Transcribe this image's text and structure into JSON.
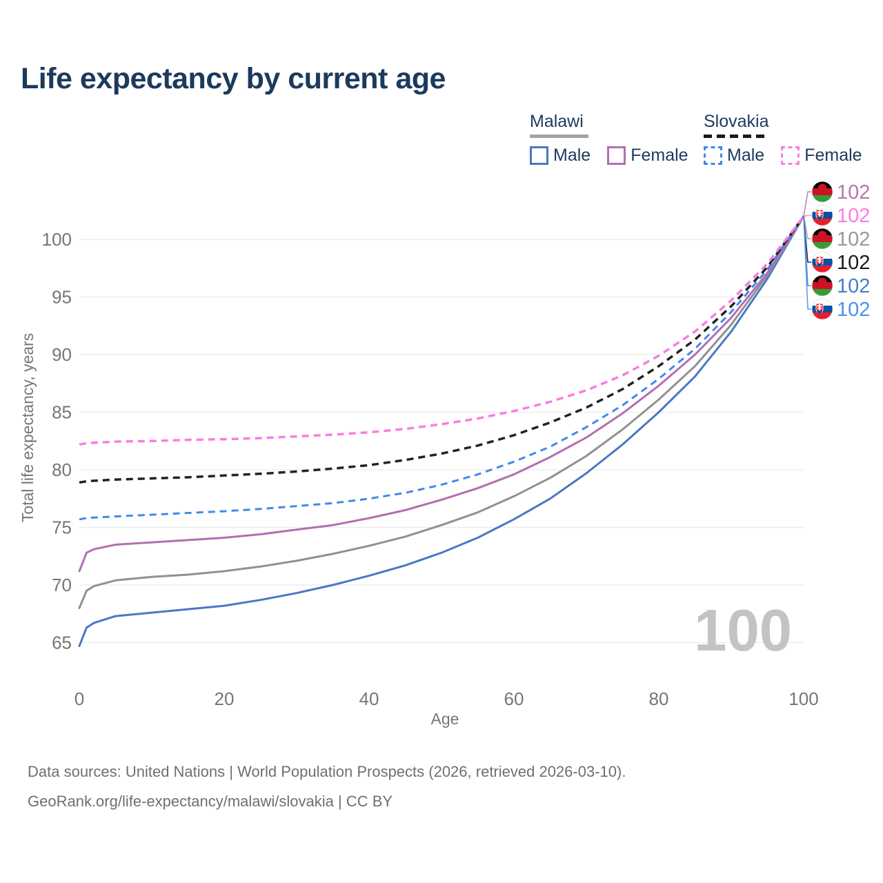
{
  "header": {
    "title": "Life expectancy by current age"
  },
  "legend": {
    "groups": [
      {
        "country": "Malawi",
        "line_style": "solid",
        "underline_color": "#a3a3a3",
        "items": [
          {
            "label": "Male",
            "color": "#4a77c4"
          },
          {
            "label": "Female",
            "color": "#b16fb1"
          }
        ]
      },
      {
        "country": "Slovakia",
        "line_style": "dashed",
        "underline_color": "#1a1a1a",
        "items": [
          {
            "label": "Male",
            "color": "#4189ea"
          },
          {
            "label": "Female",
            "color": "#fb7ce1"
          }
        ]
      }
    ]
  },
  "chart_data": {
    "type": "line",
    "title": "Life expectancy by current age",
    "xlabel": "Age",
    "ylabel": "Total life expectancy, years",
    "xlim": [
      0,
      100
    ],
    "ylim": [
      63,
      103.5
    ],
    "x_ticks": [
      0,
      20,
      40,
      60,
      80,
      100
    ],
    "y_ticks": [
      65,
      70,
      75,
      80,
      85,
      90,
      95,
      100
    ],
    "grid": "horizontal",
    "legend_position": "top-right",
    "watermark": "100",
    "x": [
      0,
      1,
      2,
      5,
      10,
      15,
      20,
      25,
      30,
      35,
      40,
      45,
      50,
      55,
      60,
      65,
      70,
      75,
      80,
      85,
      90,
      95,
      100
    ],
    "series": [
      {
        "name": "Malawi Male",
        "country": "Malawi",
        "sex": "Male",
        "line_style": "solid",
        "color": "#4a77c4",
        "width": 3,
        "values": [
          64.7,
          66.3,
          66.7,
          67.3,
          67.6,
          67.9,
          68.2,
          68.7,
          69.3,
          70.0,
          70.8,
          71.7,
          72.8,
          74.1,
          75.7,
          77.5,
          79.7,
          82.2,
          85.0,
          88.1,
          92.0,
          96.6,
          102
        ],
        "end_value": "102",
        "end_label_row": 4,
        "end_label_color": "#4a7cc7",
        "flag": "malawi-flag-icon"
      },
      {
        "name": "Malawi Total",
        "country": "Malawi",
        "sex": "Total",
        "line_style": "solid",
        "color": "#909090",
        "width": 3,
        "values": [
          68.0,
          69.5,
          69.9,
          70.4,
          70.7,
          70.9,
          71.2,
          71.6,
          72.1,
          72.7,
          73.4,
          74.2,
          75.2,
          76.3,
          77.7,
          79.3,
          81.2,
          83.5,
          86.1,
          89.0,
          92.6,
          96.9,
          102
        ],
        "end_value": "102",
        "end_label_row": 2,
        "end_label_color": "#999999",
        "flag": "malawi-flag-icon"
      },
      {
        "name": "Malawi Female",
        "country": "Malawi",
        "sex": "Female",
        "line_style": "solid",
        "color": "#b16fb1",
        "width": 3,
        "values": [
          71.2,
          72.8,
          73.1,
          73.5,
          73.7,
          73.9,
          74.1,
          74.4,
          74.8,
          75.2,
          75.8,
          76.5,
          77.4,
          78.4,
          79.6,
          81.1,
          82.8,
          84.9,
          87.3,
          90.0,
          93.2,
          97.1,
          102
        ],
        "end_value": "102",
        "end_label_row": 0,
        "end_label_color": "#b279ae",
        "flag": "malawi-flag-icon"
      },
      {
        "name": "Slovakia Male",
        "country": "Slovakia",
        "sex": "Male",
        "line_style": "dashed",
        "color": "#4189ea",
        "width": 3,
        "values": [
          75.7,
          75.8,
          75.85,
          75.95,
          76.1,
          76.25,
          76.4,
          76.6,
          76.85,
          77.1,
          77.5,
          78.0,
          78.7,
          79.6,
          80.7,
          82.0,
          83.7,
          85.6,
          87.9,
          90.5,
          93.7,
          97.4,
          102
        ],
        "end_value": "102",
        "end_label_row": 5,
        "end_label_color": "#4a90f5",
        "flag": "slovakia-flag-icon"
      },
      {
        "name": "Slovakia Total",
        "country": "Slovakia",
        "sex": "Total",
        "line_style": "dashed",
        "color": "#222222",
        "width": 3.5,
        "values": [
          78.9,
          79.0,
          79.05,
          79.15,
          79.25,
          79.35,
          79.5,
          79.65,
          79.85,
          80.1,
          80.4,
          80.85,
          81.4,
          82.1,
          83.0,
          84.1,
          85.4,
          87.0,
          89.0,
          91.3,
          94.2,
          97.6,
          102
        ],
        "end_value": "102",
        "end_label_row": 3,
        "end_label_color": "#1a1a1a",
        "flag": "slovakia-flag-icon"
      },
      {
        "name": "Slovakia Female",
        "country": "Slovakia",
        "sex": "Female",
        "line_style": "dashed",
        "color": "#fb7ce1",
        "width": 3.5,
        "values": [
          82.2,
          82.3,
          82.35,
          82.45,
          82.5,
          82.6,
          82.65,
          82.75,
          82.9,
          83.05,
          83.25,
          83.55,
          83.95,
          84.45,
          85.1,
          85.9,
          86.9,
          88.2,
          89.9,
          92.0,
          94.7,
          97.9,
          102
        ],
        "end_value": "102",
        "end_label_row": 1,
        "end_label_color": "#fd7ce1",
        "flag": "slovakia-flag-icon"
      }
    ]
  },
  "footer": {
    "line1": "Data sources: United Nations | World Population Prospects (2026, retrieved 2026-03-10).",
    "line2": "GeoRank.org/life-expectancy/malawi/slovakia | CC BY"
  }
}
